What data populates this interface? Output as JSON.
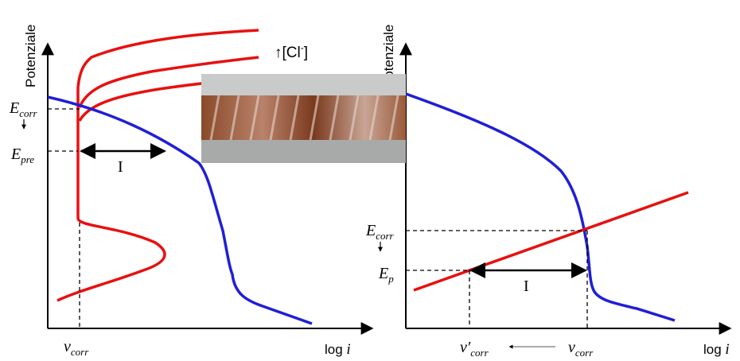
{
  "left_panel": {
    "y_axis_label": "Potenziale",
    "x_axis_label": {
      "text": "log",
      "variable": "i"
    },
    "annotation": {
      "text": "↑[Cl",
      "superscript": "-",
      "close": "]"
    },
    "e_corr": {
      "symbol": "E",
      "subscript": "corr"
    },
    "e_pre": {
      "symbol": "E",
      "subscript": "pre"
    },
    "interval": "I",
    "v_corr": {
      "symbol": "v",
      "subscript": "corr"
    }
  },
  "right_panel": {
    "y_axis_label": "Potenziale",
    "x_axis_label": {
      "text": "log",
      "variable": "i"
    },
    "e_corr": {
      "symbol": "E",
      "subscript": "corr"
    },
    "e_p": {
      "symbol": "E",
      "subscript": "p"
    },
    "interval": "I",
    "v_corr_prime": {
      "symbol": "v′",
      "subscript": "corr"
    },
    "v_corr": {
      "symbol": "v",
      "subscript": "corr"
    }
  }
}
